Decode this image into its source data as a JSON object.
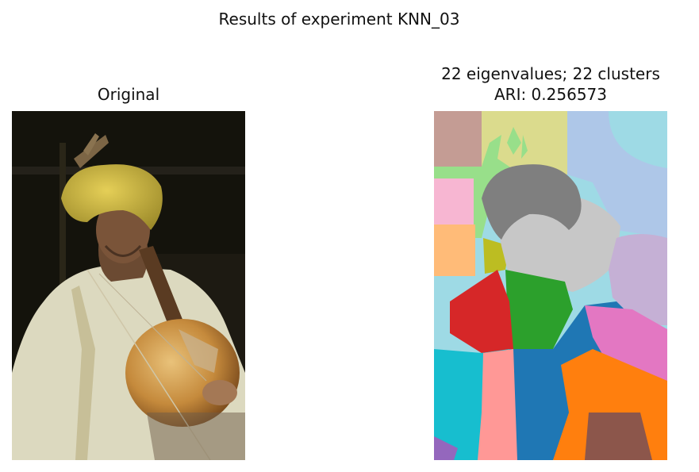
{
  "figure": {
    "title": "Results of experiment KNN_03"
  },
  "left_panel": {
    "title": "Original"
  },
  "right_panel": {
    "title_line1": "22 eigenvalues; 22 clusters",
    "title_line2": "ARI: 0.256573"
  }
}
